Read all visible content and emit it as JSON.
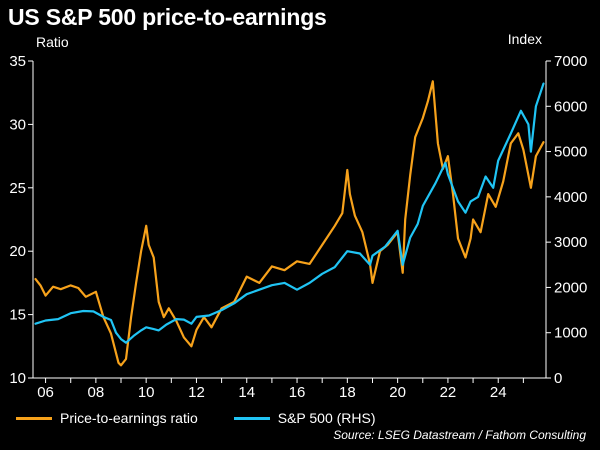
{
  "header": {
    "title": "US S&P 500 price-to-earnings",
    "left_axis_label": "Ratio",
    "right_axis_label": "Index"
  },
  "legend": {
    "pe_label": "Price-to-earnings ratio",
    "sp_label": "S&P 500 (RHS)"
  },
  "source": "Source: LSEG Datastream / Fathom Consulting",
  "colors": {
    "background": "#000000",
    "pe": "#f7a21b",
    "sp": "#20c4f4",
    "axis": "#ffffff"
  },
  "chart_data": {
    "type": "line",
    "title": "US S&P 500 price-to-earnings",
    "xlabel": "",
    "ylabel": "Ratio",
    "y2label": "Index",
    "xlim": [
      2005.5,
      2025.9
    ],
    "ylim": [
      10,
      35
    ],
    "y2lim": [
      0,
      7000
    ],
    "x_ticks": [
      2006,
      2008,
      2010,
      2012,
      2014,
      2016,
      2018,
      2020,
      2022,
      2024
    ],
    "x_tick_labels": [
      "06",
      "08",
      "10",
      "12",
      "14",
      "16",
      "18",
      "20",
      "22",
      "24"
    ],
    "y_ticks": [
      10,
      15,
      20,
      25,
      30,
      35
    ],
    "y2_ticks": [
      0,
      1000,
      2000,
      3000,
      4000,
      5000,
      6000,
      7000
    ],
    "grid": false,
    "legend_position": "bottom",
    "series": [
      {
        "name": "Price-to-earnings ratio",
        "axis": "left",
        "x": [
          2005.6,
          2005.8,
          2006.0,
          2006.3,
          2006.6,
          2007.0,
          2007.3,
          2007.6,
          2008.0,
          2008.3,
          2008.6,
          2008.9,
          2009.0,
          2009.2,
          2009.4,
          2009.6,
          2009.8,
          2010.0,
          2010.1,
          2010.3,
          2010.5,
          2010.7,
          2010.9,
          2011.2,
          2011.5,
          2011.8,
          2012.0,
          2012.3,
          2012.6,
          2013.0,
          2013.5,
          2014.0,
          2014.5,
          2015.0,
          2015.5,
          2016.0,
          2016.5,
          2017.0,
          2017.5,
          2017.8,
          2018.0,
          2018.1,
          2018.3,
          2018.6,
          2018.9,
          2019.0,
          2019.3,
          2019.6,
          2020.0,
          2020.2,
          2020.3,
          2020.5,
          2020.7,
          2021.0,
          2021.2,
          2021.4,
          2021.6,
          2021.8,
          2022.0,
          2022.2,
          2022.4,
          2022.7,
          2022.9,
          2023.0,
          2023.3,
          2023.6,
          2023.9,
          2024.2,
          2024.5,
          2024.8,
          2025.0,
          2025.3,
          2025.5,
          2025.8
        ],
        "values": [
          17.8,
          17.3,
          16.5,
          17.2,
          17.0,
          17.3,
          17.1,
          16.4,
          16.8,
          14.8,
          13.5,
          11.2,
          11.0,
          11.5,
          14.8,
          17.5,
          20.0,
          22.0,
          20.5,
          19.5,
          16.0,
          14.8,
          15.5,
          14.5,
          13.2,
          12.5,
          13.8,
          14.8,
          14.0,
          15.5,
          16.0,
          18.0,
          17.5,
          18.8,
          18.5,
          19.2,
          19.0,
          20.5,
          22.0,
          23.0,
          26.4,
          24.5,
          22.8,
          21.5,
          19.0,
          17.5,
          20.0,
          20.5,
          21.5,
          18.3,
          22.5,
          26.0,
          29.0,
          30.5,
          31.8,
          33.4,
          28.5,
          26.5,
          27.5,
          24.5,
          21.0,
          19.5,
          21.0,
          22.5,
          21.5,
          24.5,
          23.5,
          25.5,
          28.5,
          29.3,
          28.0,
          25.0,
          27.5,
          28.6
        ]
      },
      {
        "name": "S&P 500 (RHS)",
        "axis": "right",
        "x": [
          2005.6,
          2006.0,
          2006.5,
          2007.0,
          2007.5,
          2007.9,
          2008.3,
          2008.6,
          2008.8,
          2009.0,
          2009.2,
          2009.5,
          2009.8,
          2010.0,
          2010.3,
          2010.5,
          2010.8,
          2011.2,
          2011.5,
          2011.8,
          2012.0,
          2012.5,
          2013.0,
          2013.5,
          2014.0,
          2014.5,
          2015.0,
          2015.5,
          2016.0,
          2016.5,
          2017.0,
          2017.5,
          2018.0,
          2018.5,
          2018.9,
          2019.0,
          2019.5,
          2020.0,
          2020.2,
          2020.5,
          2020.8,
          2021.0,
          2021.5,
          2021.9,
          2022.0,
          2022.4,
          2022.7,
          2022.9,
          2023.2,
          2023.5,
          2023.8,
          2024.0,
          2024.5,
          2024.9,
          2025.2,
          2025.3,
          2025.5,
          2025.8
        ],
        "values": [
          1200,
          1270,
          1300,
          1430,
          1480,
          1470,
          1350,
          1280,
          1000,
          860,
          780,
          930,
          1050,
          1120,
          1080,
          1050,
          1180,
          1300,
          1290,
          1200,
          1350,
          1380,
          1500,
          1650,
          1850,
          1950,
          2050,
          2100,
          1950,
          2100,
          2300,
          2450,
          2800,
          2750,
          2500,
          2700,
          2900,
          3250,
          2500,
          3100,
          3400,
          3800,
          4300,
          4750,
          4500,
          3900,
          3650,
          3900,
          4000,
          4450,
          4200,
          4800,
          5400,
          5900,
          5600,
          5000,
          6000,
          6500
        ]
      }
    ]
  }
}
